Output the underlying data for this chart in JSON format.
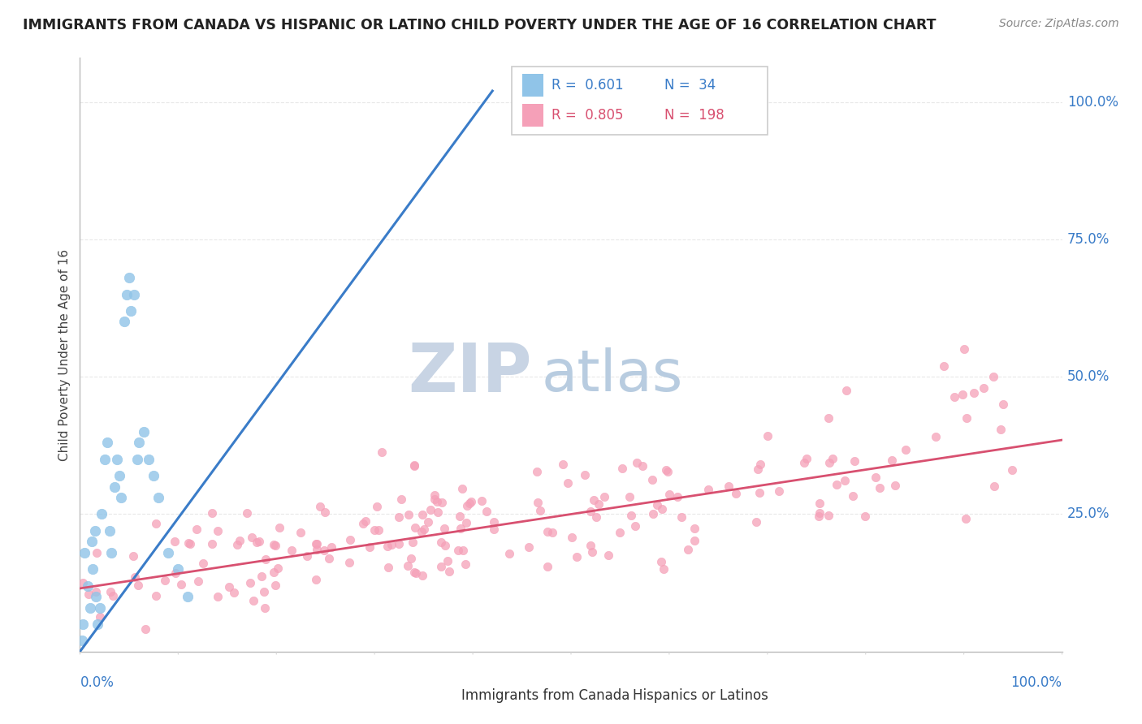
{
  "title": "IMMIGRANTS FROM CANADA VS HISPANIC OR LATINO CHILD POVERTY UNDER THE AGE OF 16 CORRELATION CHART",
  "source": "Source: ZipAtlas.com",
  "ylabel": "Child Poverty Under the Age of 16",
  "yright_ticks": [
    "100.0%",
    "75.0%",
    "50.0%",
    "25.0%"
  ],
  "yright_tick_vals": [
    1.0,
    0.75,
    0.5,
    0.25
  ],
  "legend1_label": "Immigrants from Canada",
  "legend2_label": "Hispanics or Latinos",
  "R1": "0.601",
  "N1": "34",
  "R2": "0.805",
  "N2": "198",
  "blue_scatter_color": "#90c4e8",
  "pink_scatter_color": "#f5a0b8",
  "blue_line_color": "#3a7cc8",
  "pink_line_color": "#d85070",
  "watermark_zip_color": "#c8d4e4",
  "watermark_atlas_color": "#b8cce0",
  "background_color": "#ffffff",
  "grid_color": "#e8e8e8",
  "title_color": "#222222",
  "source_color": "#888888",
  "axis_label_color": "#3a7cc8",
  "legend_text_blue": "#3a7cc8",
  "legend_text_pink": "#d85070"
}
